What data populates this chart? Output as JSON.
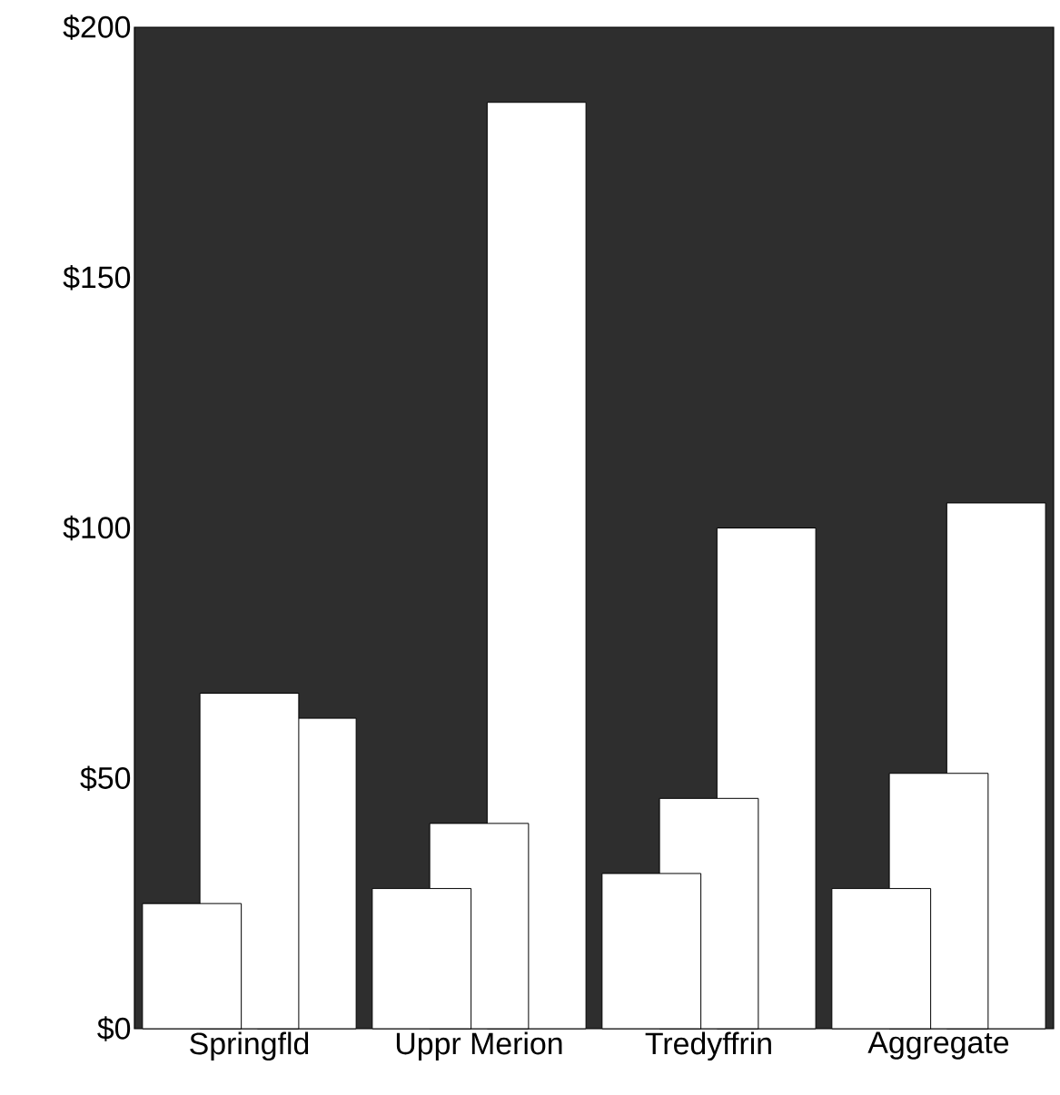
{
  "chart_data": {
    "type": "bar",
    "categories": [
      "Springfld",
      "Uppr Merion",
      "Tredyffrin",
      "Aggregate"
    ],
    "series": [
      {
        "color": "#ffffff",
        "values": [
          25,
          28,
          31,
          28
        ]
      },
      {
        "color": "#ffffff",
        "values": [
          67,
          41,
          46,
          51
        ]
      },
      {
        "color": "#ffffff",
        "values": [
          62,
          185,
          100,
          105
        ]
      }
    ],
    "ylim": [
      0,
      200
    ],
    "yticks": [
      {
        "value": 0,
        "label": "$0"
      },
      {
        "value": 50,
        "label": "$50"
      },
      {
        "value": 100,
        "label": "$100"
      },
      {
        "value": 150,
        "label": "$150"
      },
      {
        "value": 200,
        "label": "$200"
      }
    ],
    "grid": false
  }
}
